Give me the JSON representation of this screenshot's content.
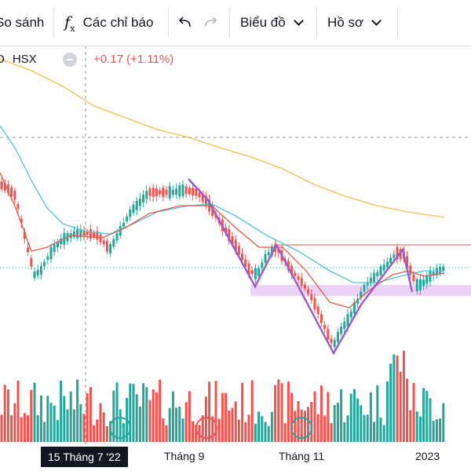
{
  "toolbar": {
    "compare_label": "So sánh",
    "indicators_label": "Các chỉ báo",
    "chart_type_label": "Biểu đồ",
    "profile_label": "Hồ sơ"
  },
  "legend": {
    "symbol_suffix": "D",
    "exchange": "HSX",
    "change": "+0.17 (+1.11%)",
    "change_color": "#ef5350"
  },
  "xaxis": {
    "crosshair_date": "15 Tháng 7 '22",
    "labels": [
      "Tháng 9",
      "Tháng 11",
      "2023"
    ]
  },
  "colors": {
    "up": "#26a69a",
    "down": "#ef5350",
    "ma_long": "#f2c14e",
    "ma_mid": "#4fc3d9",
    "ma_short": "#e05a4a",
    "pattern": "#9b59d0",
    "zone": "#e6c8f5"
  }
}
